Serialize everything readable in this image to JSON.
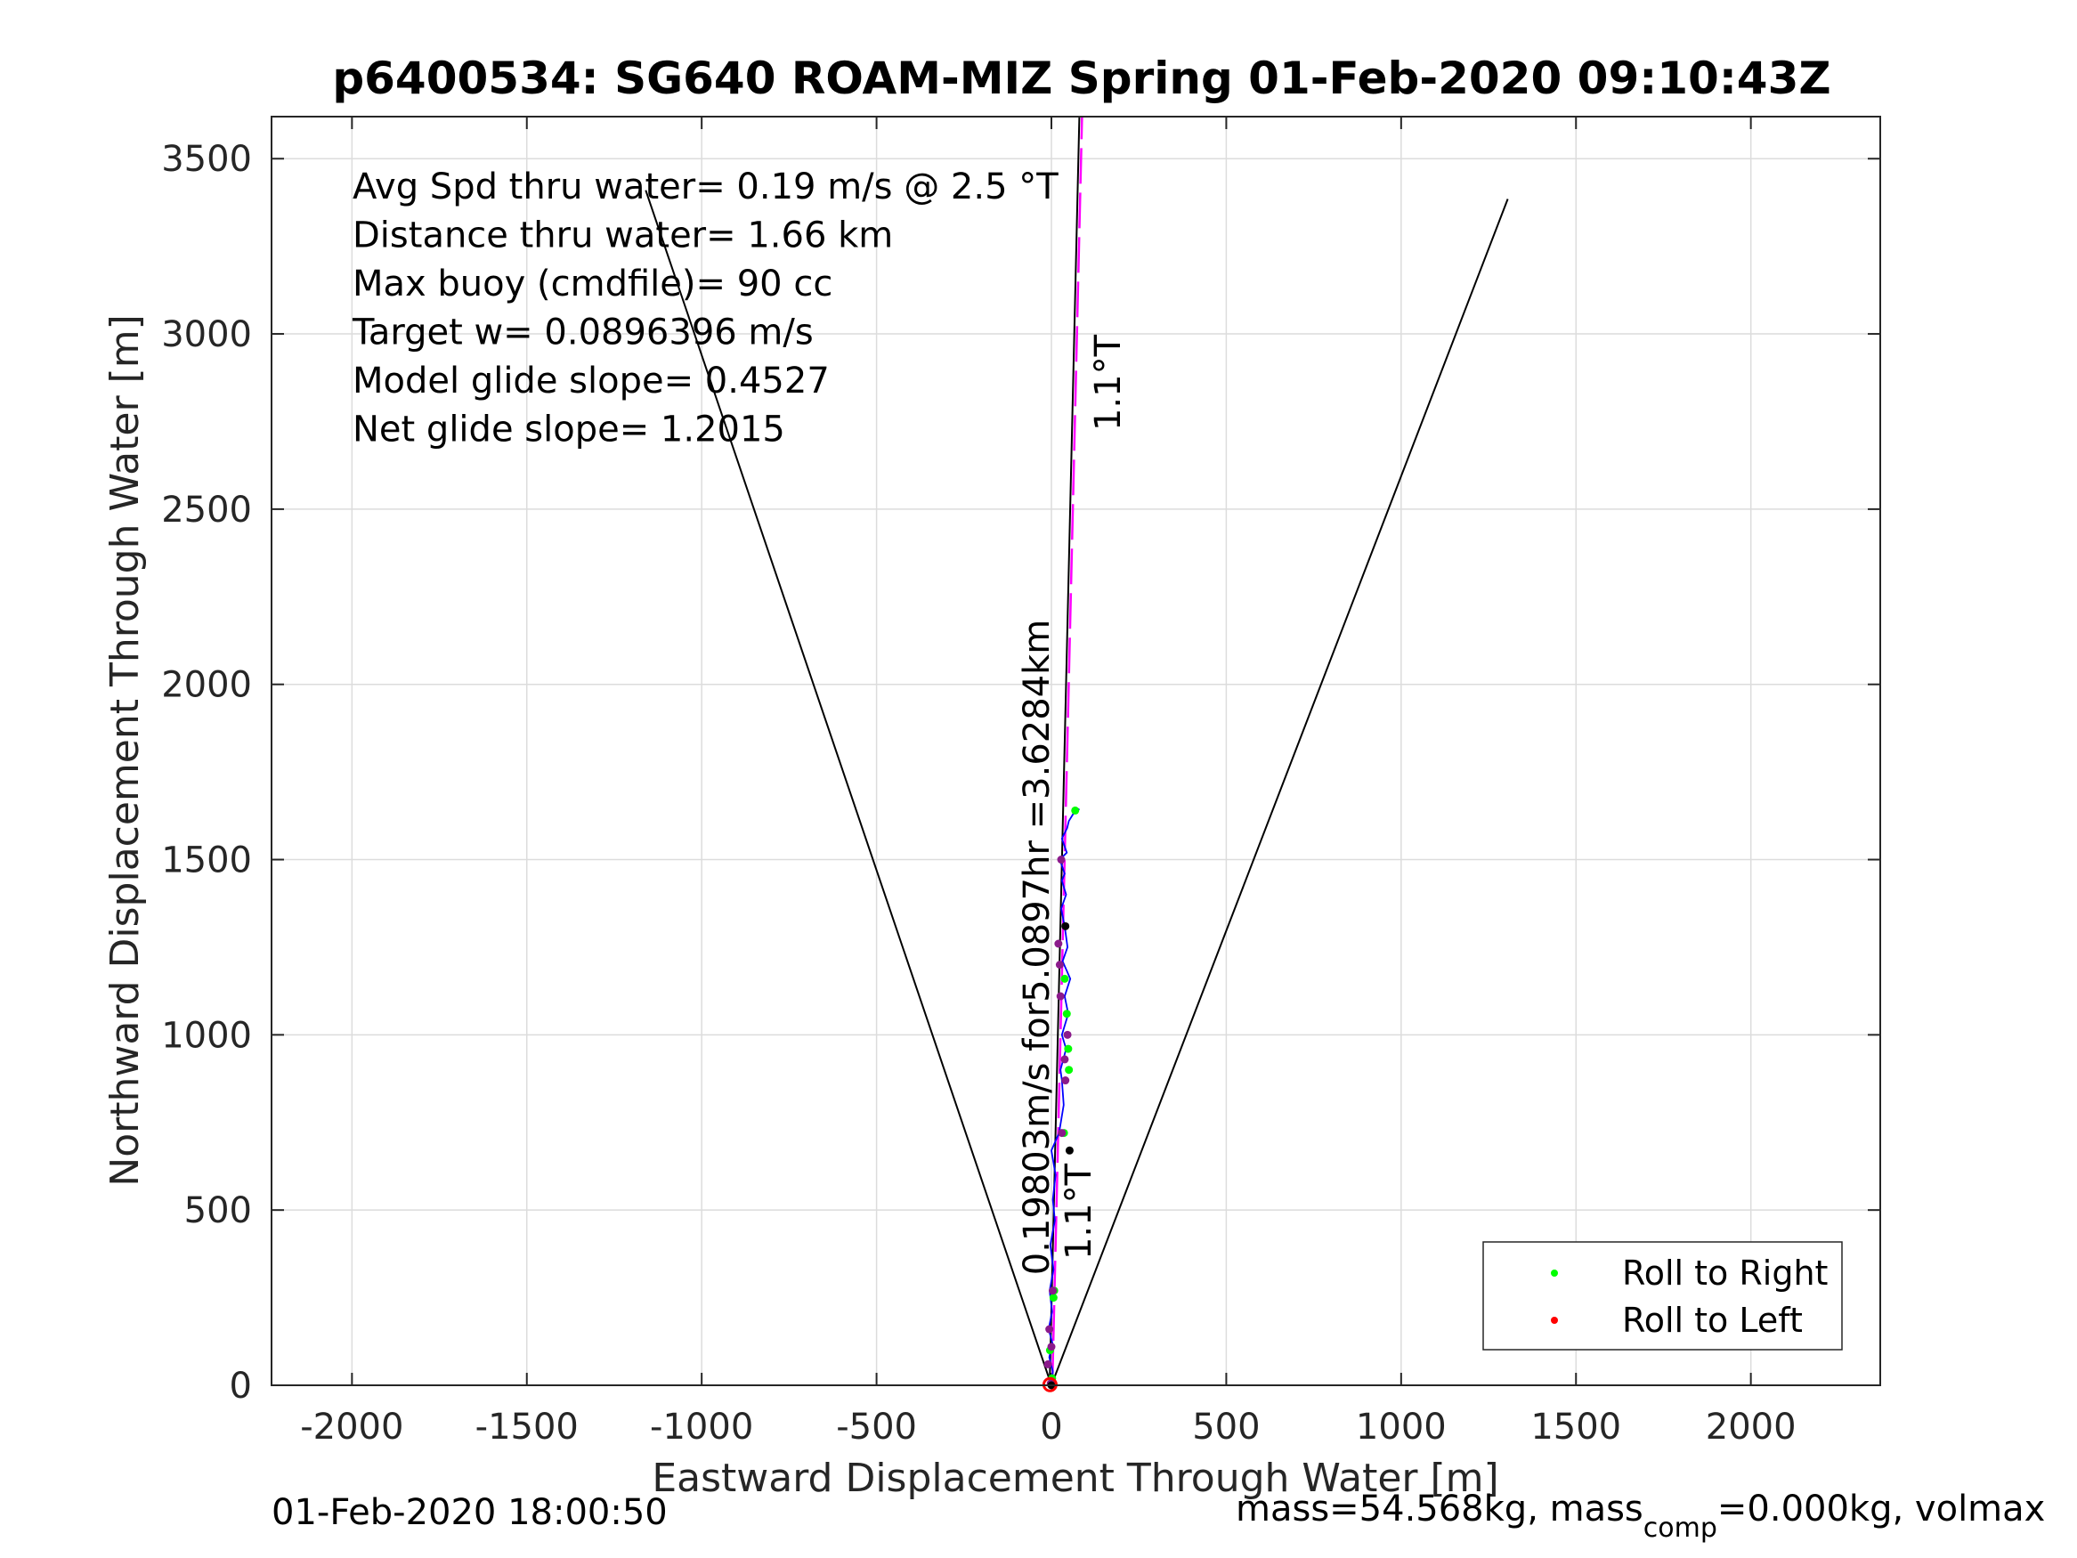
{
  "chart_data": {
    "type": "line",
    "title": "p6400534: SG640 ROAM-MIZ Spring 01-Feb-2020 09:10:43Z",
    "xlabel": "Eastward Displacement Through Water [m]",
    "ylabel": "Northward Displacement Through Water [m]",
    "xlim": [
      -2230,
      2370
    ],
    "ylim": [
      0,
      3620
    ],
    "xticks": [
      -2000,
      -1500,
      -1000,
      -500,
      0,
      500,
      1000,
      1500,
      2000
    ],
    "yticks": [
      0,
      500,
      1000,
      1500,
      2000,
      2500,
      3000,
      3500
    ],
    "grid": true,
    "legend_position": "bottom-right",
    "legend": [
      "Roll to Right",
      "Roll to Left"
    ],
    "colors": {
      "track": "#0000ff",
      "heading": "#ff00ff",
      "cone": "#000000",
      "roll_right": "#00ff00",
      "roll_left": "#ff0000",
      "marker_dark": "#000000",
      "marker_purple": "#8b1a8b"
    },
    "annotations_text": [
      "Avg Spd thru water=  0.19 m/s @   2.5  °T",
      "Distance thru water=  1.66 km",
      "Max buoy (cmdfile)= 90 cc",
      "Target w= 0.0896396 m/s",
      "Model glide slope= 0.4527",
      "Net glide slope= 1.2015"
    ],
    "heading_label_upper": "1.1°T",
    "heading_label_lower": "1.1°T",
    "speed_label": "0.19803m/s for5.0897hr =3.6284km",
    "series": [
      {
        "role": "track",
        "x": [
          0,
          4,
          -6,
          3,
          -8,
          2,
          -5,
          6,
          -3,
          10,
          4,
          12,
          0,
          22,
          35,
          30,
          26,
          42,
          30,
          48,
          38,
          54,
          32,
          46,
          38,
          28,
          42,
          30,
          38,
          24,
          44,
          30,
          45,
          50,
          62,
          80
        ],
        "y": [
          0,
          40,
          80,
          120,
          160,
          210,
          270,
          330,
          400,
          470,
          530,
          600,
          670,
          720,
          800,
          870,
          900,
          960,
          1000,
          1060,
          1110,
          1160,
          1210,
          1250,
          1310,
          1360,
          1400,
          1440,
          1460,
          1500,
          1520,
          1560,
          1590,
          1610,
          1630,
          1645
        ]
      },
      {
        "role": "heading",
        "x": [
          -5,
          80
        ],
        "y": [
          0,
          3620
        ]
      },
      {
        "role": "cone-left",
        "x": [
          0,
          -1160
        ],
        "y": [
          0,
          3410
        ]
      },
      {
        "role": "cone-right",
        "x": [
          0,
          1305
        ],
        "y": [
          0,
          3385
        ]
      }
    ],
    "roll_right_points": {
      "x": [
        2,
        -4,
        6,
        8,
        36,
        50,
        48,
        44,
        38,
        68
      ],
      "y": [
        20,
        100,
        250,
        270,
        720,
        900,
        960,
        1060,
        1160,
        1640
      ]
    },
    "roll_left_points": {
      "x": [
        -2,
        -10,
        0,
        -6,
        4,
        30,
        40,
        38,
        46,
        26,
        24,
        20,
        28
      ],
      "y": [
        5,
        60,
        110,
        160,
        270,
        720,
        870,
        930,
        1000,
        1110,
        1200,
        1260,
        1500
      ]
    },
    "dark_points": {
      "x": [
        0,
        52,
        40
      ],
      "y": [
        0,
        670,
        1310
      ]
    }
  },
  "footer": {
    "timestamp": "01-Feb-2020 18:00:50",
    "mass_prefix": "mass=54.568kg, mass",
    "mass_subscript": "comp",
    "mass_suffix": "=0.000kg, volmax"
  }
}
